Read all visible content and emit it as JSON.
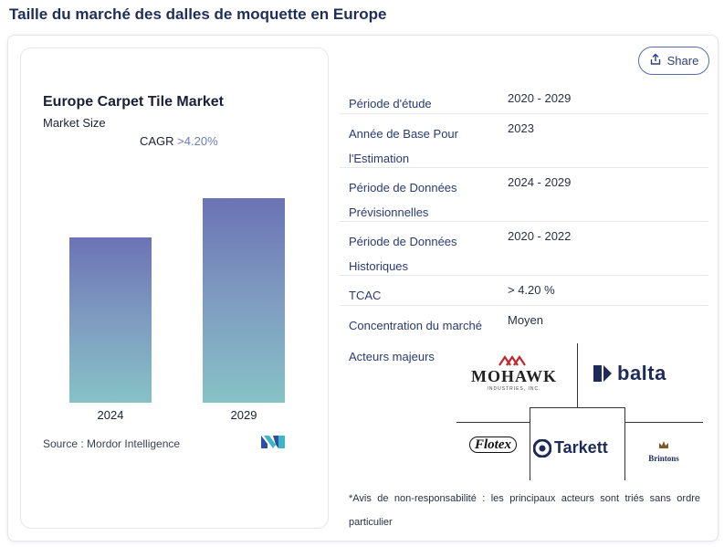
{
  "page_title": "Taille du marché des dalles de moquette en Europe",
  "chart_card": {
    "title": "Europe Carpet Tile Market",
    "subtitle": "Market Size",
    "cagr_label": "CAGR ",
    "cagr_value": ">4.20%",
    "source": "Source :  Mordor Intelligence"
  },
  "chart_data": {
    "type": "bar",
    "categories": [
      "2024",
      "2029"
    ],
    "values": [
      0.81,
      1.0
    ],
    "title": "Europe Carpet Tile Market",
    "xlabel": "",
    "ylabel": ""
  },
  "share": {
    "label": "Share",
    "icon": "share-icon"
  },
  "info_rows": [
    {
      "key": "Période d'étude",
      "value": "2020 - 2029"
    },
    {
      "key": "Année de Base Pour l'Estimation",
      "value": "2023"
    },
    {
      "key": "Période de Données Prévisionnelles",
      "value": "2024 - 2029"
    },
    {
      "key": "Période de Données Historiques",
      "value": "2020 - 2022"
    },
    {
      "key": "TCAC",
      "value": "> 4.20 %"
    },
    {
      "key": "Concentration du marché",
      "value": "Moyen"
    }
  ],
  "players": {
    "label": "Acteurs majeurs",
    "logos": {
      "mohawk": "MOHAWK",
      "mohawk_sub": "INDUSTRIES, INC.",
      "balta": "balta",
      "flotex": "Flotex",
      "tarkett": "Tarkett",
      "brintons": "Brintons"
    }
  },
  "disclaimer": "*Avis de non-responsabilité : les principaux acteurs sont triés sans ordre particulier",
  "colors": {
    "accent": "#2f3f7a",
    "bar_top": "#6b73b5",
    "bar_bottom": "#86c2c6"
  }
}
